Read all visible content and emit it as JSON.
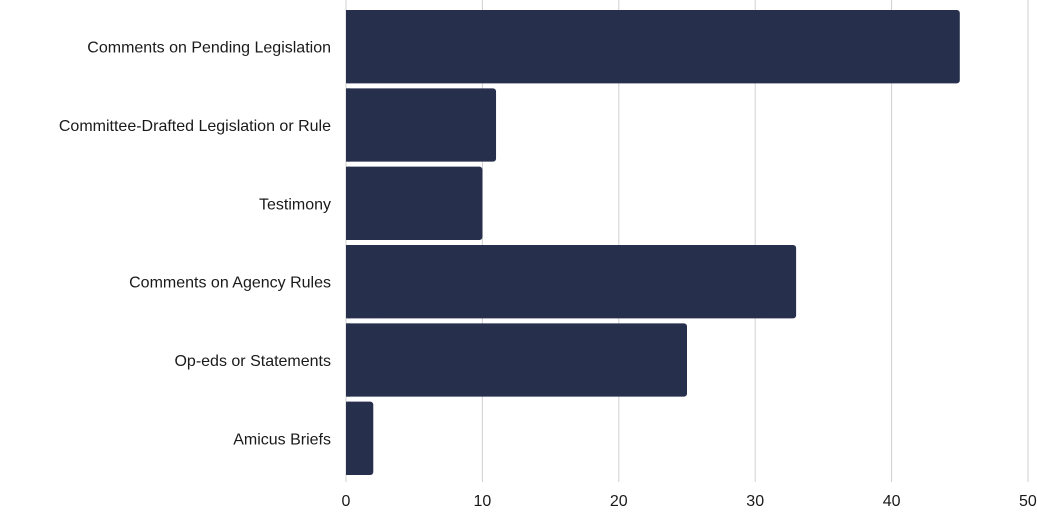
{
  "chart_data": {
    "type": "bar",
    "orientation": "horizontal",
    "categories": [
      "Comments on Pending Legislation",
      "Committee-Drafted Legislation or Rule",
      "Testimony",
      "Comments on Agency Rules",
      "Op-eds or Statements",
      "Amicus Briefs"
    ],
    "values": [
      45,
      11,
      10,
      33,
      25,
      2
    ],
    "xlim": [
      0,
      50
    ],
    "xticks": [
      0,
      10,
      20,
      30,
      40,
      50
    ],
    "grid": true,
    "bar_color": "#262f4c",
    "grid_color": "#d0d0d0",
    "legend": "none"
  }
}
